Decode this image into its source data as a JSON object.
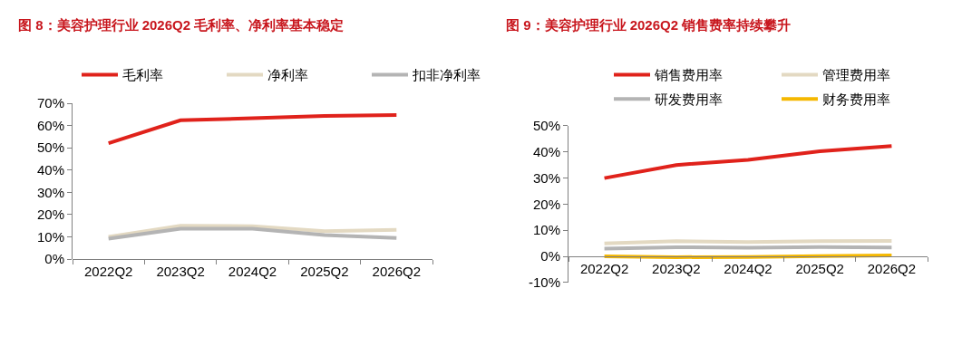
{
  "chart_data": [
    {
      "type": "line",
      "title": "图 8：美容护理行业 2026Q2 毛利率、净利率基本稳定",
      "categories": [
        "2022Q2",
        "2023Q2",
        "2024Q2",
        "2025Q2",
        "2026Q2"
      ],
      "series": [
        {
          "name": "毛利率",
          "color": "#e0221b",
          "values": [
            52.1,
            62.4,
            63.3,
            64.3,
            64.7
          ]
        },
        {
          "name": "净利率",
          "color": "#e3d9c2",
          "values": [
            10.0,
            15.0,
            14.8,
            12.6,
            13.2
          ]
        },
        {
          "name": "扣非净利率",
          "color": "#b4b4b4",
          "values": [
            9.2,
            13.7,
            13.7,
            10.8,
            9.5
          ]
        }
      ],
      "ylim": [
        0,
        70
      ],
      "yticks": [
        {
          "value": 0,
          "label": "0%"
        },
        {
          "value": 10,
          "label": "10%"
        },
        {
          "value": 20,
          "label": "20%"
        },
        {
          "value": 30,
          "label": "30%"
        },
        {
          "value": 40,
          "label": "40%"
        },
        {
          "value": 50,
          "label": "50%"
        },
        {
          "value": 60,
          "label": "60%"
        },
        {
          "value": 70,
          "label": "70%"
        }
      ],
      "legend": "top",
      "marker": "none",
      "line_style": "solid"
    },
    {
      "type": "line",
      "title": "图 9：美容护理行业 2026Q2 销售费率持续攀升",
      "categories": [
        "2022Q2",
        "2023Q2",
        "2024Q2",
        "2025Q2",
        "2026Q2"
      ],
      "series": [
        {
          "name": "销售费用率",
          "color": "#e0221b",
          "values": [
            30.0,
            35.0,
            37.0,
            40.3,
            42.3
          ]
        },
        {
          "name": "管理费用率",
          "color": "#e3d9c2",
          "values": [
            5.0,
            5.8,
            5.5,
            5.8,
            5.9
          ]
        },
        {
          "name": "研发费用率",
          "color": "#b4b4b4",
          "values": [
            3.0,
            3.5,
            3.3,
            3.6,
            3.4
          ]
        },
        {
          "name": "财务费用率",
          "color": "#f5b800",
          "values": [
            0.0,
            -0.3,
            -0.2,
            0.1,
            0.4
          ]
        }
      ],
      "ylim": [
        -10,
        50
      ],
      "yticks": [
        {
          "value": -10,
          "label": "-10%"
        },
        {
          "value": 0,
          "label": "0%"
        },
        {
          "value": 10,
          "label": "10%"
        },
        {
          "value": 20,
          "label": "20%"
        },
        {
          "value": 30,
          "label": "30%"
        },
        {
          "value": 40,
          "label": "40%"
        },
        {
          "value": 50,
          "label": "50%"
        }
      ],
      "legend": "top",
      "marker": "none",
      "line_style": "solid"
    }
  ]
}
